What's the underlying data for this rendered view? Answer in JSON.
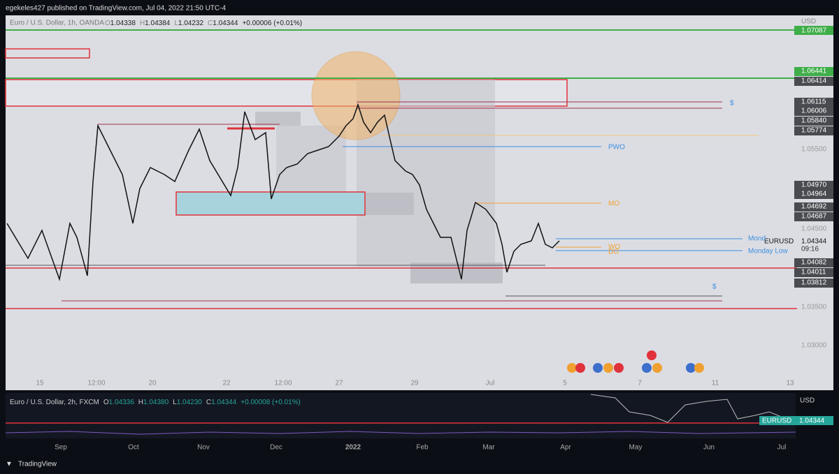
{
  "header": {
    "text": "egekeles427 published on TradingView.com, Jul 04, 2022 21:50 UTC-4"
  },
  "main_pane": {
    "symbol": "Euro / U.S. Dollar, 1h, OANDA",
    "ohlc": [
      {
        "label": "O",
        "value": "1.04338"
      },
      {
        "label": "H",
        "value": "1.04384"
      },
      {
        "label": "L",
        "value": "1.04232"
      },
      {
        "label": "C",
        "value": "1.04344"
      }
    ],
    "change": "+0.00006 (+0.01%)",
    "currency": "USD",
    "price_labels": [
      "1.07087",
      "1.06441",
      "1.06414",
      "1.06115",
      "1.06006",
      "1.05840",
      "1.05774",
      "1.05500",
      "1.04970",
      "1.04964",
      "1.04692",
      "1.04687",
      "1.04500",
      "1.04344",
      "1.04082",
      "1.04011",
      "1.03812",
      "1.03500",
      "1.03000"
    ],
    "last_symbol": "EURUSD",
    "countdown": "09:16",
    "time_labels": [
      "15",
      "12:00",
      "20",
      "22",
      "12:00",
      "27",
      "29",
      "Jul",
      "5",
      "7",
      "11",
      "13"
    ],
    "annotations": [
      "PWO",
      "MO",
      "WO",
      "DO",
      "Monday Low",
      "Mond",
      "$",
      "$"
    ]
  },
  "lower_pane": {
    "legend": "Euro / U.S. Dollar, 2h, FXCM",
    "ohlc": [
      {
        "label": "O",
        "value": "1.04336"
      },
      {
        "label": "H",
        "value": "1.04380"
      },
      {
        "label": "L",
        "value": "1.04230"
      },
      {
        "label": "C",
        "value": "1.04344"
      }
    ],
    "change": "+0.00008 (+0.01%)",
    "currency": "USD",
    "last_symbol": "EURUSD",
    "last_price": "1.04344",
    "time_labels": [
      "Sep",
      "Oct",
      "Nov",
      "Dec",
      "2022",
      "Feb",
      "Mar",
      "Apr",
      "May",
      "Jun",
      "Jul"
    ]
  },
  "footer": {
    "brand": "TradingView"
  }
}
